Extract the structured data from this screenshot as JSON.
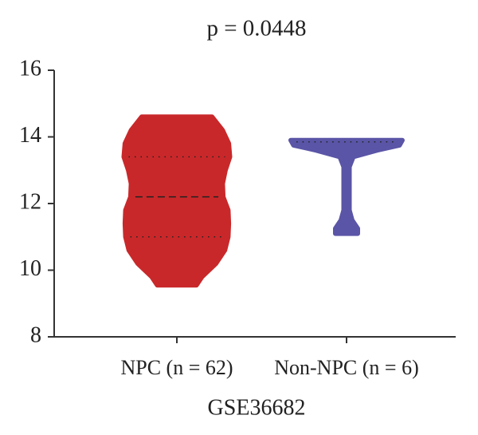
{
  "chart_data": {
    "type": "violin",
    "title": "p = 0.0448",
    "xlabel": "GSE36682",
    "ylim": [
      8,
      16
    ],
    "yticks": [
      8,
      10,
      12,
      14,
      16
    ],
    "series": [
      {
        "name": "NPC (n = 62)",
        "color": "#c9282a",
        "q1": 11.0,
        "median": 12.2,
        "q3": 13.4,
        "density": {
          "y": [
            14.6,
            14.2,
            13.8,
            13.4,
            13.0,
            12.6,
            12.2,
            11.8,
            11.4,
            11.0,
            10.6,
            10.2,
            9.8,
            9.55
          ],
          "width": [
            0.63,
            0.82,
            0.93,
            0.95,
            0.87,
            0.82,
            0.83,
            0.92,
            0.93,
            0.92,
            0.86,
            0.7,
            0.45,
            0.35
          ]
        }
      },
      {
        "name": "Non-NPC (n = 6)",
        "color": "#5a55a6",
        "median": 13.85,
        "density": {
          "y": [
            13.9,
            13.75,
            13.6,
            13.4,
            13.1,
            12.5,
            11.8,
            11.5,
            11.25,
            11.1
          ],
          "width": [
            1.0,
            0.95,
            0.55,
            0.12,
            0.05,
            0.05,
            0.05,
            0.1,
            0.2,
            0.2
          ]
        }
      }
    ]
  }
}
